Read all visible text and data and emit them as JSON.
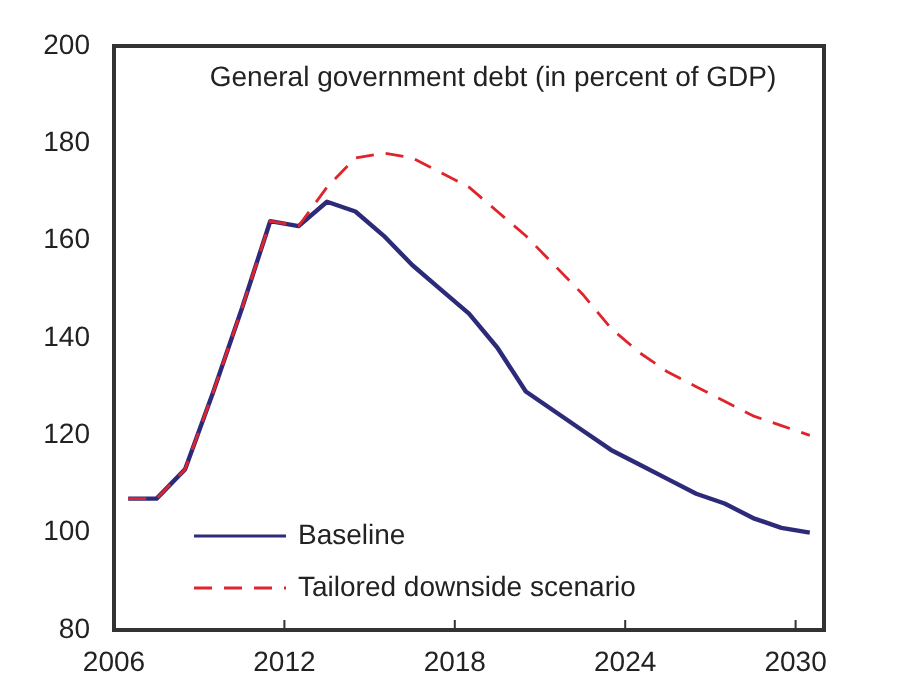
{
  "chart_data": {
    "type": "line",
    "title": "General government debt (in percent of GDP)",
    "x": [
      2006.5,
      2007.5,
      2008.5,
      2009.5,
      2010.5,
      2011.5,
      2012.5,
      2013.5,
      2014.5,
      2015.5,
      2016.5,
      2017.5,
      2018.5,
      2019.5,
      2020.5,
      2021.5,
      2022.5,
      2023.5,
      2024.5,
      2025.5,
      2026.5,
      2027.5,
      2028.5,
      2029.5,
      2030.5
    ],
    "series": [
      {
        "name": "Baseline",
        "color": "#2e2a7a",
        "line_style": "solid",
        "values": [
          107,
          107,
          113,
          129,
          146,
          164,
          163,
          168,
          166,
          161,
          155,
          150,
          145,
          138,
          129,
          125,
          121,
          117,
          114,
          111,
          108,
          106,
          103,
          101,
          100
        ]
      },
      {
        "name": "Tailored downside scenario",
        "color": "#e0242c",
        "line_style": "dashed",
        "values": [
          107,
          107,
          113,
          129,
          146,
          164,
          163,
          171,
          177,
          178,
          177,
          174,
          171,
          166,
          161,
          155,
          149,
          142,
          137,
          133,
          130,
          127,
          124,
          122,
          120
        ]
      }
    ],
    "xlim": [
      2006,
      2031
    ],
    "xticks": [
      2006,
      2012,
      2018,
      2024,
      2030
    ],
    "ylim": [
      80,
      200
    ],
    "yticks": [
      80,
      100,
      120,
      140,
      160,
      180,
      200
    ],
    "grid": false,
    "legend": "bottom left",
    "marker": "none"
  }
}
